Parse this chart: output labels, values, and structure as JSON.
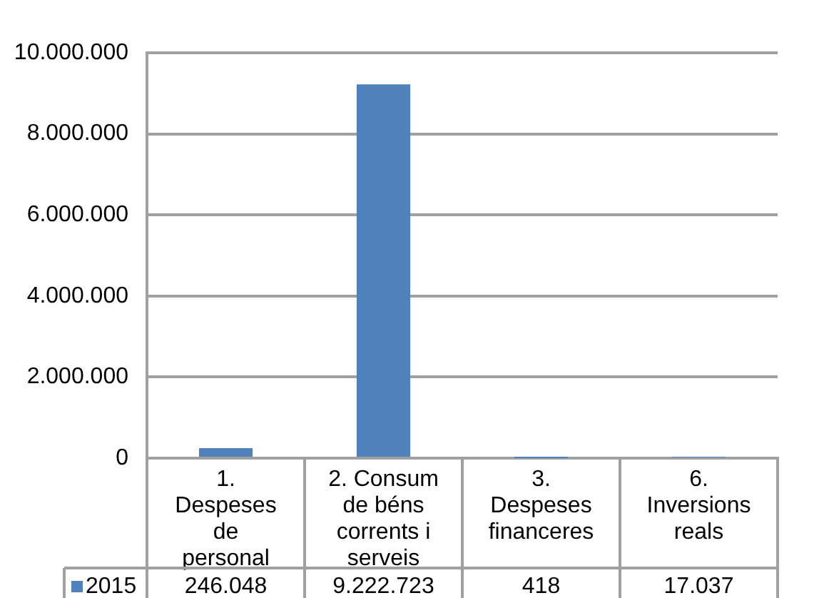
{
  "chart_data": {
    "type": "bar",
    "categories": [
      "1. Despeses de personal",
      "2. Consum de béns corrents i serveis",
      "3. Despeses financeres",
      "6. Inversions reals"
    ],
    "series": [
      {
        "name": "2015",
        "color": "#4f81bd",
        "values": [
          246048,
          9222723,
          418,
          17037
        ],
        "value_labels": [
          "246.048",
          "9.222.723",
          "418",
          "17.037"
        ]
      }
    ],
    "ylim": [
      0,
      10000000
    ],
    "yticks": [
      0,
      {
        "value": 2000000,
        "label": "2.000.000"
      },
      {
        "value": 4000000,
        "label": "4.000.000"
      },
      {
        "value": 6000000,
        "label": "6.000.000"
      },
      {
        "value": 8000000,
        "label": "8.000.000"
      },
      {
        "value": 10000000,
        "label": "10.000.000"
      }
    ],
    "grid": "y",
    "legend": "bottom"
  }
}
